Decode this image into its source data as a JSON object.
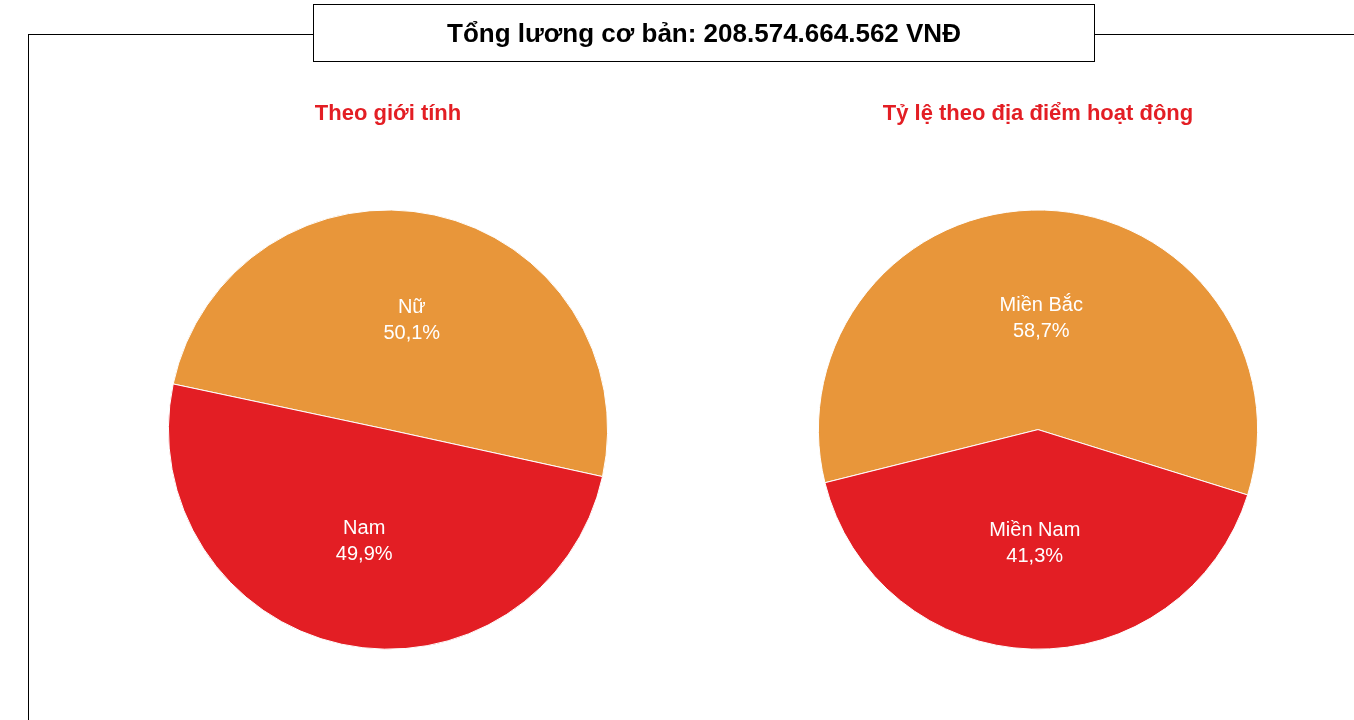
{
  "chart_data": [
    {
      "type": "pie",
      "title": "Theo giới tính",
      "annotations": [
        "Tổng lương cơ bản: 208.574.664.562 VNĐ"
      ],
      "categories": [
        "Nữ",
        "Nam"
      ],
      "values": [
        50.1,
        49.9
      ],
      "value_labels": [
        "50,1%",
        "49,9%"
      ],
      "colors": [
        "#e8963a",
        "#e31e24"
      ]
    },
    {
      "type": "pie",
      "title": "Tỷ lệ theo địa điểm hoạt động",
      "categories": [
        "Miền Bắc",
        "Miền Nam"
      ],
      "values": [
        58.7,
        41.3
      ],
      "value_labels": [
        "58,7%",
        "41,3%"
      ],
      "colors": [
        "#e8963a",
        "#e31e24"
      ]
    }
  ]
}
